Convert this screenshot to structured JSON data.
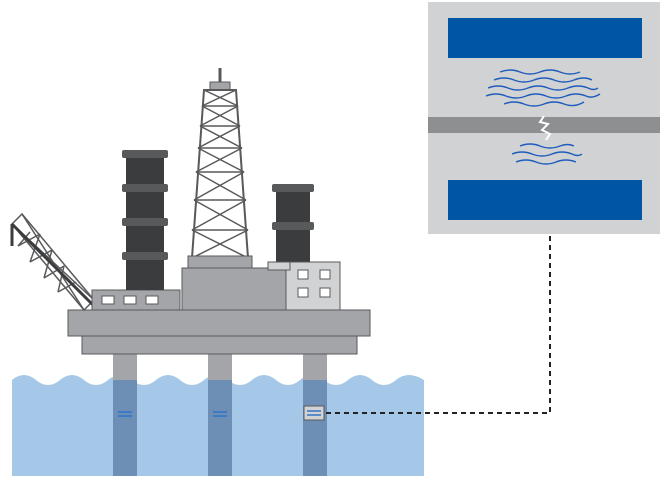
{
  "diagram": {
    "background": "#ffffff",
    "colors": {
      "steel": "#a4a5a8",
      "steel_dark": "#58595b",
      "steel_light": "#d1d2d4",
      "stack": "#3b3c3e",
      "sea": "#a6c8e8",
      "leg_underwater": "#6e8fb5",
      "gauge_blue": "#2f73c9",
      "panel_bg": "#d1d2d4",
      "panel_plate": "#0055a5",
      "panel_divider": "#8e8f91",
      "wave_line": "#1e5cbc",
      "connector": "#222222"
    },
    "icons": {
      "platform": "offshore-oil-platform-icon",
      "crane": "crane-icon",
      "derrick": "drilling-derrick-icon",
      "sensor": "strain-sensor-icon",
      "crack": "crack-icon",
      "signal": "acoustic-wave-icon"
    },
    "sensors": [
      {
        "leg": "left",
        "highlighted": false
      },
      {
        "leg": "middle",
        "highlighted": false
      },
      {
        "leg": "right",
        "highlighted": true
      }
    ],
    "detail_panel": {
      "top_plate": "solid-blue",
      "bottom_plate": "solid-blue",
      "emission": "waves-from-crack",
      "divider": "cracked-member"
    },
    "connector_style": "dashed"
  }
}
